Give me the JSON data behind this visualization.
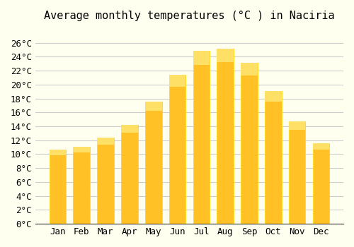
{
  "title": "Average monthly temperatures (°C ) in Naciria",
  "months": [
    "Jan",
    "Feb",
    "Mar",
    "Apr",
    "May",
    "Jun",
    "Jul",
    "Aug",
    "Sep",
    "Oct",
    "Nov",
    "Dec"
  ],
  "values": [
    10.7,
    11.1,
    12.4,
    14.2,
    17.6,
    21.4,
    24.8,
    25.2,
    23.1,
    19.1,
    14.7,
    11.6
  ],
  "bar_color_main": "#FFC125",
  "bar_color_edge": "#FFD700",
  "background_color": "#FFFFF0",
  "grid_color": "#CCCCCC",
  "ylim": [
    0,
    28
  ],
  "yticks": [
    0,
    2,
    4,
    6,
    8,
    10,
    12,
    14,
    16,
    18,
    20,
    22,
    24,
    26
  ],
  "title_fontsize": 11,
  "tick_fontsize": 9,
  "font_family": "monospace"
}
